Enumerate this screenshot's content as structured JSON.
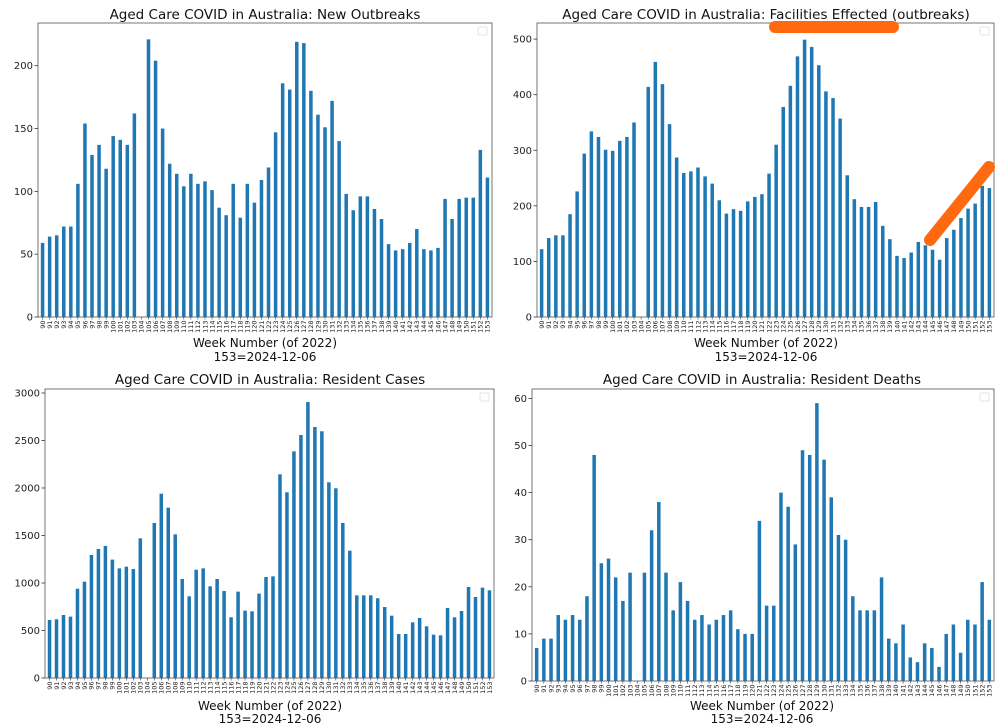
{
  "chart_data": [
    {
      "type": "bar",
      "title": "Aged Care COVID in Australia: New Outbreaks",
      "xlabel": "Week Number (of 2022)",
      "xlabel_note": "153=2024-12-06",
      "ylabel": "",
      "ylim": [
        0,
        234
      ],
      "yticks": [
        0,
        50,
        100,
        150,
        200
      ],
      "legend": "top-right (empty)",
      "grid": false,
      "color": "#1f77b4",
      "categories": [
        "90",
        "91",
        "92",
        "93",
        "94",
        "95",
        "96",
        "97",
        "98",
        "99",
        "100",
        "101",
        "102",
        "103",
        "104",
        "105",
        "106",
        "107",
        "108",
        "109",
        "110",
        "111",
        "112",
        "113",
        "114",
        "115",
        "116",
        "117",
        "118",
        "119",
        "120",
        "121",
        "122",
        "123",
        "124",
        "125",
        "126",
        "127",
        "128",
        "129",
        "130",
        "131",
        "132",
        "133",
        "134",
        "135",
        "136",
        "137",
        "138",
        "139",
        "140",
        "141",
        "142",
        "143",
        "144",
        "145",
        "146",
        "147",
        "148",
        "149",
        "150",
        "151",
        "152",
        "153"
      ],
      "values": [
        59,
        64,
        65,
        72,
        72,
        106,
        154,
        129,
        137,
        118,
        144,
        141,
        137,
        162,
        null,
        221,
        204,
        150,
        122,
        114,
        104,
        114,
        106,
        108,
        101,
        87,
        81,
        106,
        79,
        106,
        91,
        109,
        119,
        147,
        186,
        181,
        219,
        218,
        180,
        161,
        151,
        172,
        140,
        98,
        85,
        96,
        96,
        86,
        78,
        58,
        53,
        54,
        59,
        70,
        54,
        53,
        55,
        94,
        78,
        94,
        95,
        95,
        133,
        111
      ]
    },
    {
      "type": "bar",
      "title": "Aged Care COVID in Australia: Facilities Effected (outbreaks)",
      "xlabel": "Week Number (of 2022)",
      "xlabel_note": "153=2024-12-06",
      "ylabel": "",
      "ylim": [
        0,
        529
      ],
      "yticks": [
        0,
        100,
        200,
        300,
        400,
        500
      ],
      "legend": "top-right (empty)",
      "grid": false,
      "color": "#1f77b4",
      "annotation_color": "#ff6a10",
      "categories": [
        "90",
        "91",
        "92",
        "93",
        "94",
        "95",
        "96",
        "97",
        "98",
        "99",
        "100",
        "101",
        "102",
        "103",
        "104",
        "105",
        "106",
        "107",
        "108",
        "109",
        "110",
        "111",
        "112",
        "113",
        "114",
        "115",
        "116",
        "117",
        "118",
        "119",
        "120",
        "121",
        "122",
        "123",
        "124",
        "125",
        "126",
        "127",
        "128",
        "129",
        "130",
        "131",
        "132",
        "133",
        "134",
        "135",
        "136",
        "137",
        "138",
        "139",
        "140",
        "141",
        "142",
        "143",
        "144",
        "145",
        "146",
        "147",
        "148",
        "149",
        "150",
        "151",
        "152",
        "153"
      ],
      "values": [
        122,
        142,
        147,
        147,
        185,
        226,
        294,
        334,
        324,
        301,
        299,
        317,
        324,
        350,
        null,
        414,
        459,
        419,
        347,
        287,
        259,
        262,
        269,
        253,
        240,
        210,
        186,
        194,
        191,
        208,
        216,
        221,
        258,
        310,
        378,
        416,
        469,
        499,
        486,
        453,
        406,
        394,
        357,
        255,
        212,
        198,
        198,
        207,
        164,
        140,
        110,
        106,
        116,
        135,
        129,
        121,
        103,
        142,
        157,
        178,
        195,
        204,
        236,
        232
      ]
    },
    {
      "type": "bar",
      "title": "Aged Care COVID in Australia: Resident Cases",
      "xlabel": "Week Number (of 2022)",
      "xlabel_note": "153=2024-12-06",
      "ylabel": "",
      "ylim": [
        0,
        3042
      ],
      "yticks": [
        0,
        500,
        1000,
        1500,
        2000,
        2500,
        3000
      ],
      "legend": "top-right (empty)",
      "grid": false,
      "color": "#1f77b4",
      "categories": [
        "90",
        "91",
        "92",
        "93",
        "94",
        "95",
        "96",
        "97",
        "98",
        "99",
        "100",
        "101",
        "102",
        "103",
        "104",
        "105",
        "106",
        "107",
        "108",
        "109",
        "110",
        "111",
        "112",
        "113",
        "114",
        "115",
        "116",
        "117",
        "118",
        "119",
        "120",
        "121",
        "122",
        "123",
        "124",
        "125",
        "126",
        "127",
        "128",
        "129",
        "130",
        "131",
        "132",
        "133",
        "134",
        "135",
        "136",
        "137",
        "138",
        "139",
        "140",
        "141",
        "142",
        "143",
        "144",
        "145",
        "146",
        "147",
        "148",
        "149",
        "150",
        "151",
        "152",
        "153"
      ],
      "values": [
        611,
        618,
        663,
        646,
        940,
        1014,
        1295,
        1358,
        1390,
        1246,
        1154,
        1172,
        1147,
        1470,
        null,
        1632,
        1940,
        1793,
        1512,
        1042,
        860,
        1140,
        1154,
        965,
        1042,
        916,
        639,
        909,
        709,
        702,
        888,
        1063,
        1070,
        2144,
        1955,
        2386,
        2558,
        2905,
        2642,
        2597,
        2060,
        1997,
        1632,
        1340,
        870,
        870,
        870,
        839,
        747,
        656,
        463,
        463,
        586,
        632,
        544,
        456,
        449,
        737,
        639,
        705,
        958,
        853,
        951,
        923
      ]
    },
    {
      "type": "bar",
      "title": "Aged Care COVID in Australia: Resident Deaths",
      "xlabel": "Week Number (of 2022)",
      "xlabel_note": "153=2024-12-06",
      "ylabel": "",
      "ylim": [
        0,
        62
      ],
      "yticks": [
        0,
        10,
        20,
        30,
        40,
        50,
        60
      ],
      "legend": "top-right (empty)",
      "grid": false,
      "color": "#1f77b4",
      "categories": [
        "90",
        "91",
        "92",
        "93",
        "94",
        "95",
        "96",
        "97",
        "98",
        "99",
        "100",
        "101",
        "102",
        "103",
        "104",
        "105",
        "106",
        "107",
        "108",
        "109",
        "110",
        "111",
        "112",
        "113",
        "114",
        "115",
        "116",
        "117",
        "118",
        "119",
        "120",
        "121",
        "122",
        "123",
        "124",
        "125",
        "126",
        "127",
        "128",
        "129",
        "130",
        "131",
        "132",
        "133",
        "134",
        "135",
        "136",
        "137",
        "138",
        "139",
        "140",
        "141",
        "142",
        "143",
        "144",
        "145",
        "146",
        "147",
        "148",
        "149",
        "150",
        "151",
        "152",
        "153"
      ],
      "values": [
        7,
        9,
        9,
        14,
        13,
        14,
        13,
        18,
        48,
        25,
        26,
        22,
        17,
        23,
        null,
        23,
        32,
        38,
        23,
        15,
        21,
        17,
        13,
        14,
        12,
        13,
        14,
        15,
        11,
        10,
        10,
        34,
        16,
        16,
        40,
        37,
        29,
        49,
        48,
        59,
        47,
        39,
        31,
        30,
        18,
        15,
        15,
        15,
        22,
        9,
        8,
        12,
        5,
        4,
        8,
        7,
        3,
        10,
        12,
        6,
        13,
        12,
        21,
        13
      ]
    }
  ]
}
